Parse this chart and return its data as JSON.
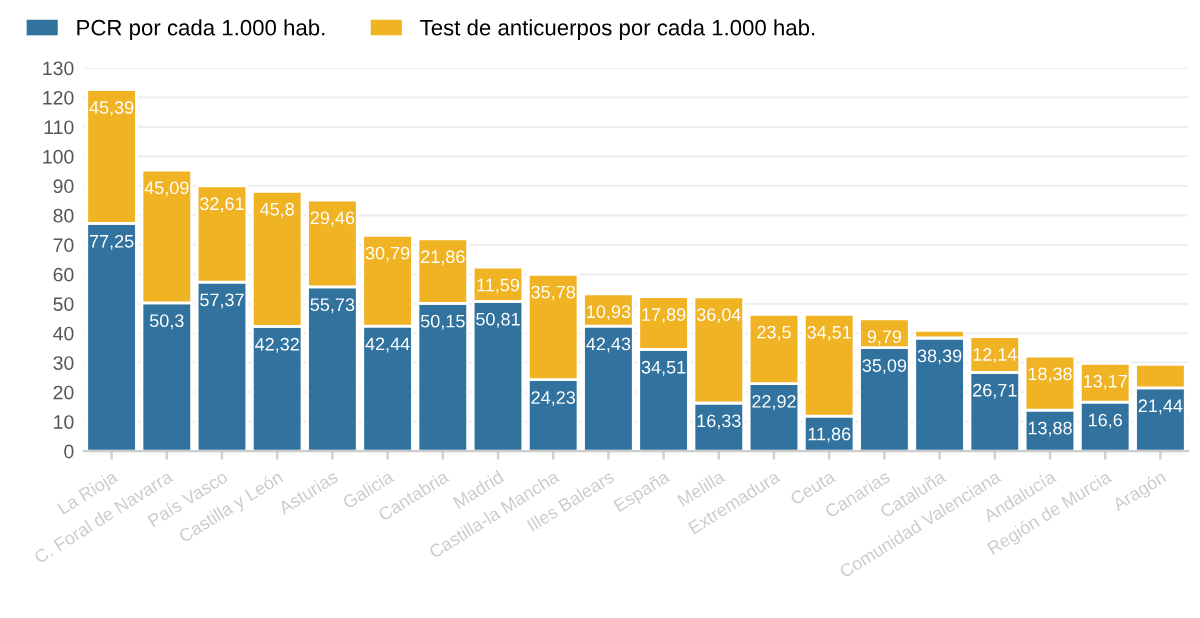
{
  "chart_data": {
    "type": "bar",
    "stacked": true,
    "legend": "top left",
    "grid": "y",
    "categories": [
      "La Rioja",
      "C. Foral de Navarra",
      "País Vasco",
      "Castilla y León",
      "Asturias",
      "Galicia",
      "Cantabria",
      "Madrid",
      "Castilla-la Mancha",
      "Illes Balears",
      "España",
      "Melilla",
      "Extremadura",
      "Ceuta",
      "Canarias",
      "Cataluña",
      "Comunidad Valenciana",
      "Andalucía",
      "Región de Murcia",
      "Aragón"
    ],
    "series": [
      {
        "name": "PCR por cada 1.000 hab.",
        "color": "#31739e",
        "values": [
          77.25,
          50.3,
          57.37,
          42.32,
          55.73,
          42.44,
          50.15,
          50.81,
          24.23,
          42.43,
          34.51,
          16.33,
          22.92,
          11.86,
          35.09,
          38.39,
          26.71,
          13.88,
          16.6,
          21.44
        ],
        "value_labels": [
          "77,25",
          "50,3",
          "57,37",
          "42,32",
          "55,73",
          "42,44",
          "50,15",
          "50,81",
          "24,23",
          "42,43",
          "34,51",
          "16,33",
          "22,92",
          "11,86",
          "35,09",
          "38,39",
          "26,71",
          "13,88",
          "16,6",
          "21,44"
        ]
      },
      {
        "name": "Test de anticuerpos por cada 1.000 hab.",
        "color": "#f0b323",
        "values": [
          45.39,
          45.09,
          32.61,
          45.8,
          29.46,
          30.79,
          21.86,
          11.59,
          35.78,
          10.93,
          17.89,
          36.04,
          23.5,
          34.51,
          9.79,
          2.6,
          12.14,
          18.38,
          13.17,
          8.0
        ],
        "value_labels": [
          "45,39",
          "45,09",
          "32,61",
          "45,8",
          "29,46",
          "30,79",
          "21,86",
          "11,59",
          "35,78",
          "10,93",
          "17,89",
          "36,04",
          "23,5",
          "34,51",
          "9,79",
          null,
          "12,14",
          "18,38",
          "13,17",
          null
        ]
      }
    ],
    "ylim": [
      0,
      130
    ],
    "yticks": [
      0,
      10,
      20,
      30,
      40,
      50,
      60,
      70,
      80,
      90,
      100,
      110,
      120,
      130
    ]
  }
}
